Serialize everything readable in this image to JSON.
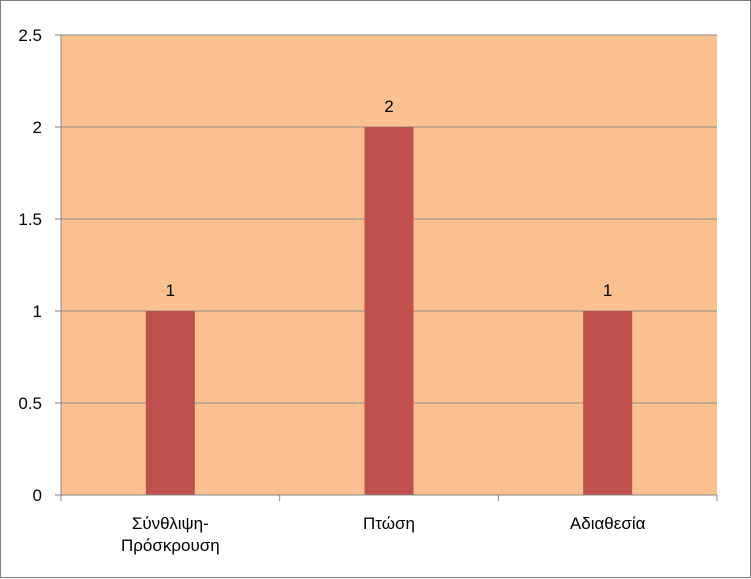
{
  "chart_data": {
    "type": "bar",
    "categories": [
      [
        "Σύνθλιψη-",
        "Πρόσκρουση"
      ],
      [
        "Πτώση"
      ],
      [
        "Αδιαθεσία"
      ]
    ],
    "values": [
      1,
      2,
      1
    ],
    "data_labels": [
      "1",
      "2",
      "1"
    ],
    "y_ticks": [
      "0",
      "0.5",
      "1",
      "1.5",
      "2",
      "2.5"
    ],
    "ylim": [
      0,
      2.5
    ],
    "grid": true,
    "colors": {
      "plot_background": "#FAC090",
      "bar": "#C0504D",
      "gridline": "#8C8C8C",
      "axis": "#868686"
    }
  }
}
